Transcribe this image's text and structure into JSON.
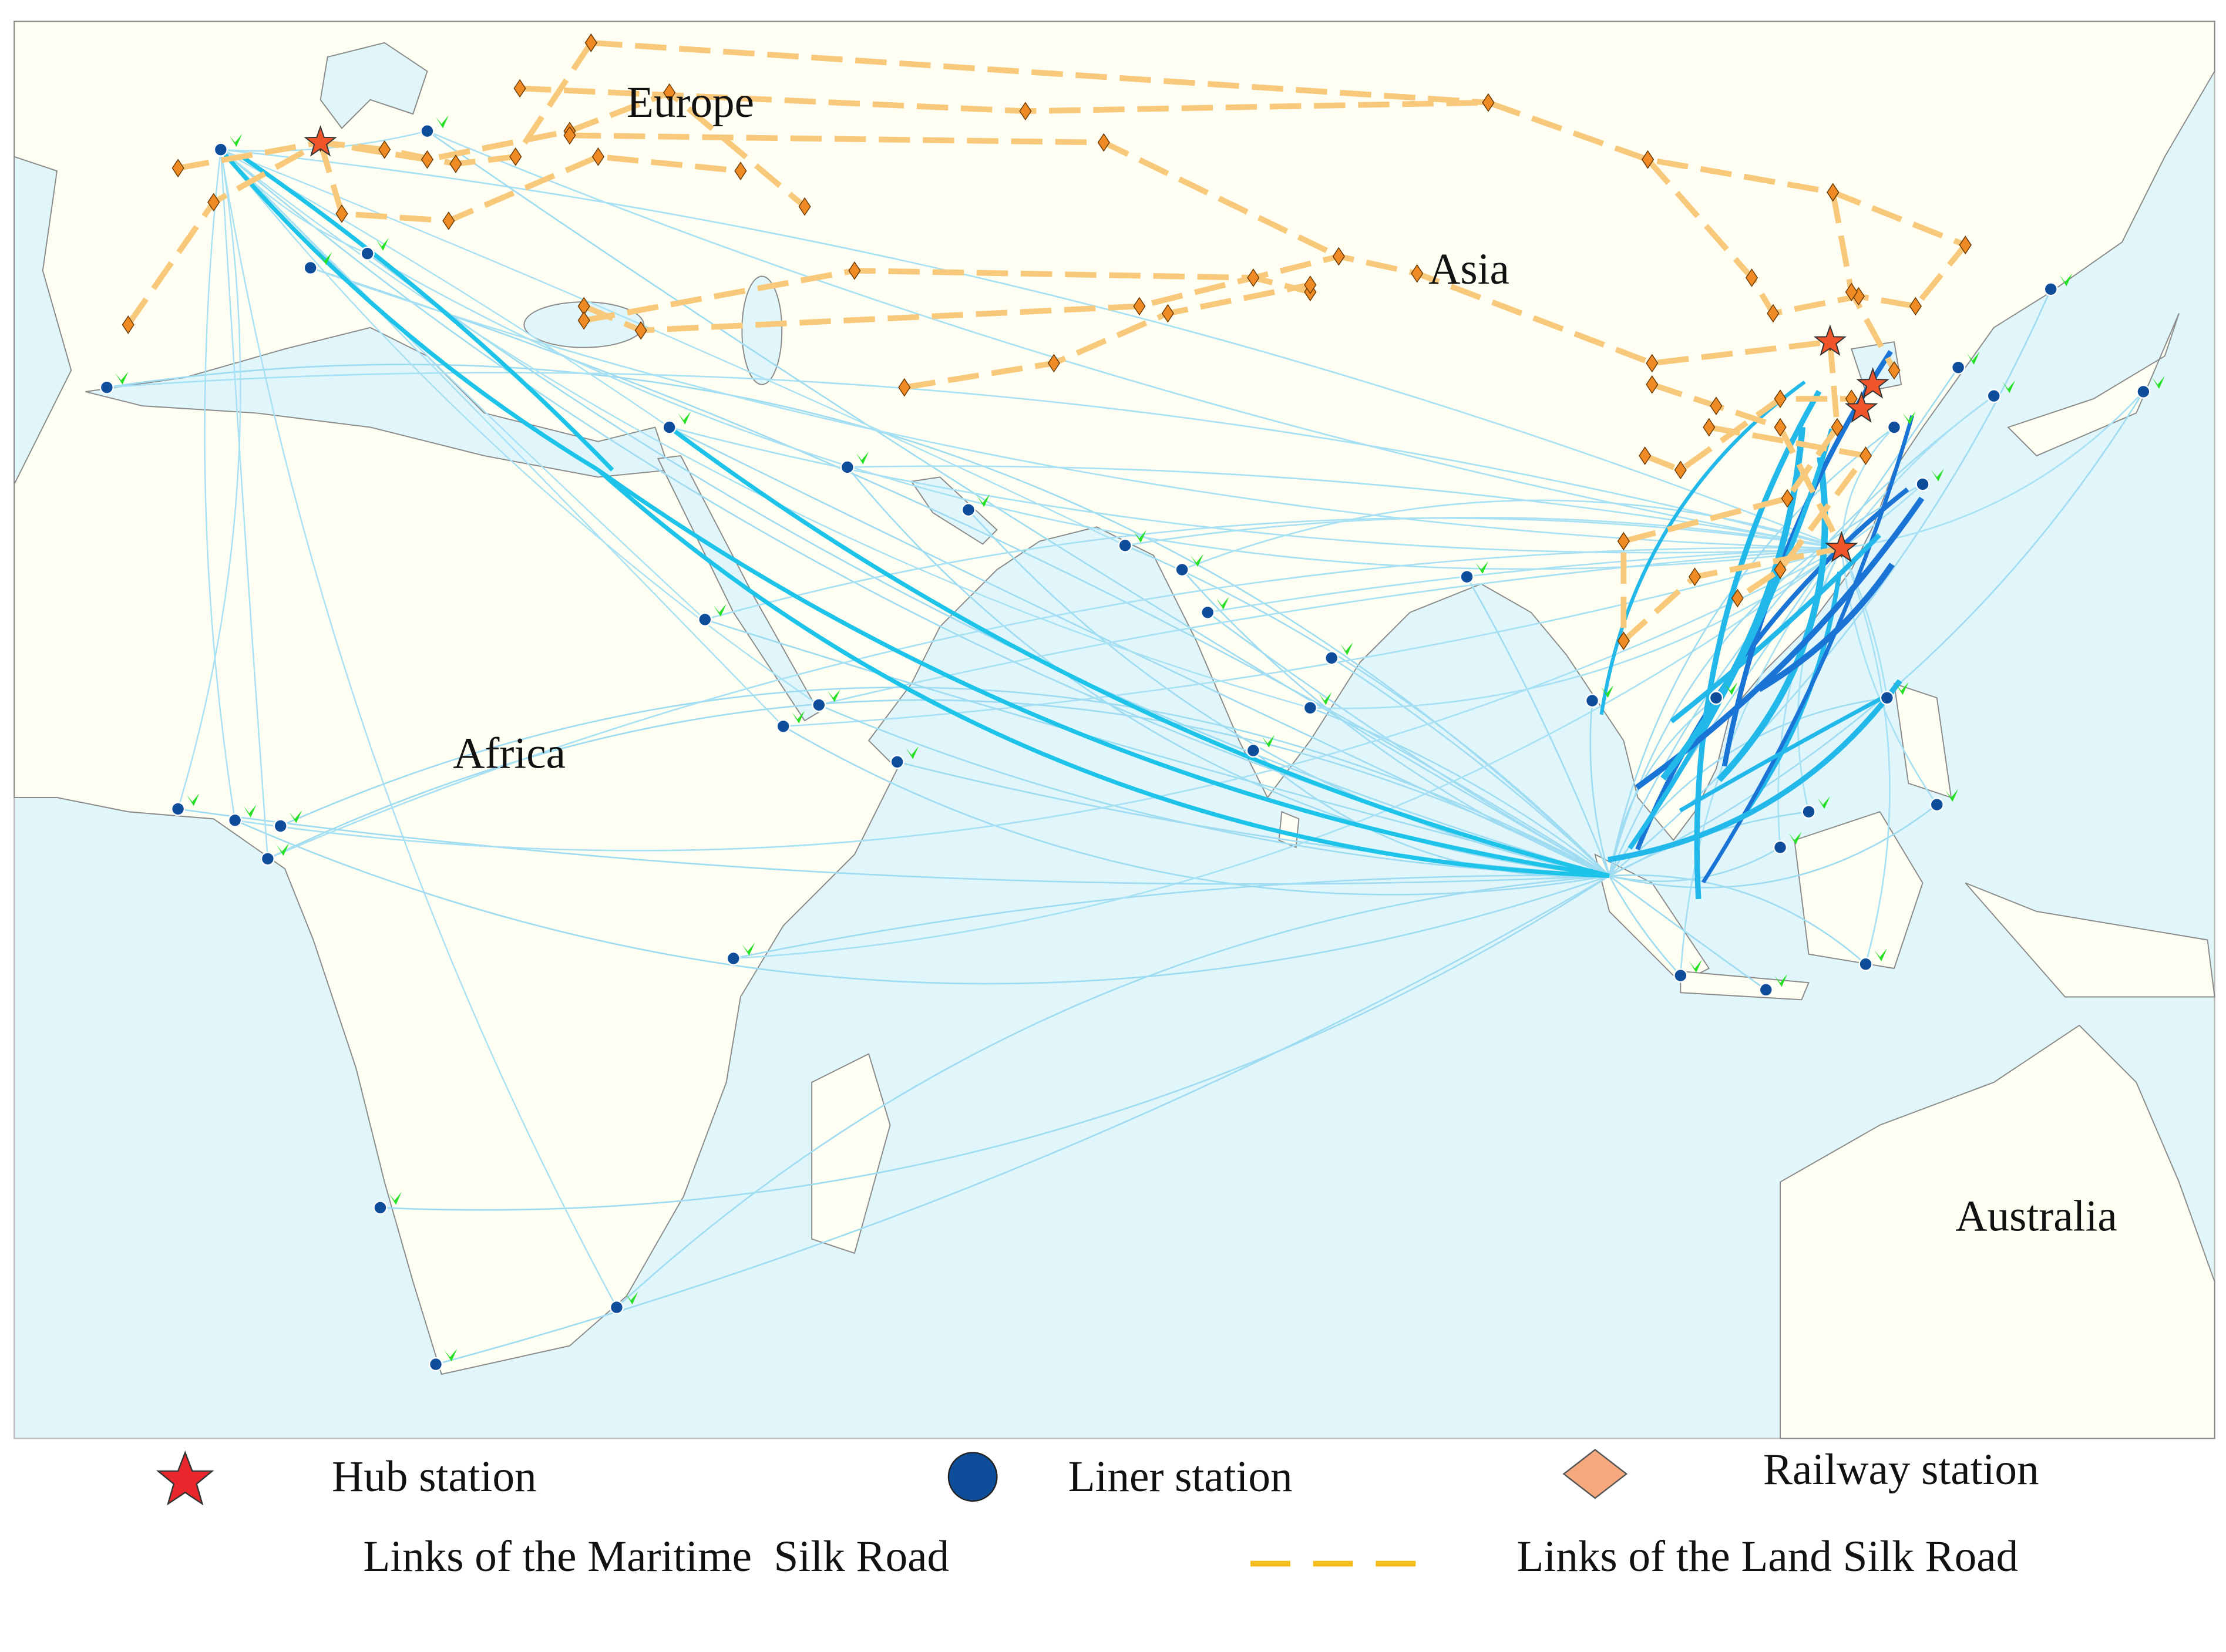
{
  "regions": [
    {
      "label": "Europe"
    },
    {
      "label": "Asia"
    },
    {
      "label": "Africa"
    },
    {
      "label": "Australia"
    }
  ],
  "legend": {
    "items": [
      {
        "label": "Hub station"
      },
      {
        "label": "Liner station"
      },
      {
        "label": "Railway station"
      },
      {
        "label": "Links of the Maritime  Silk Road"
      },
      {
        "label": "Links of the Land Silk Road"
      }
    ]
  }
}
